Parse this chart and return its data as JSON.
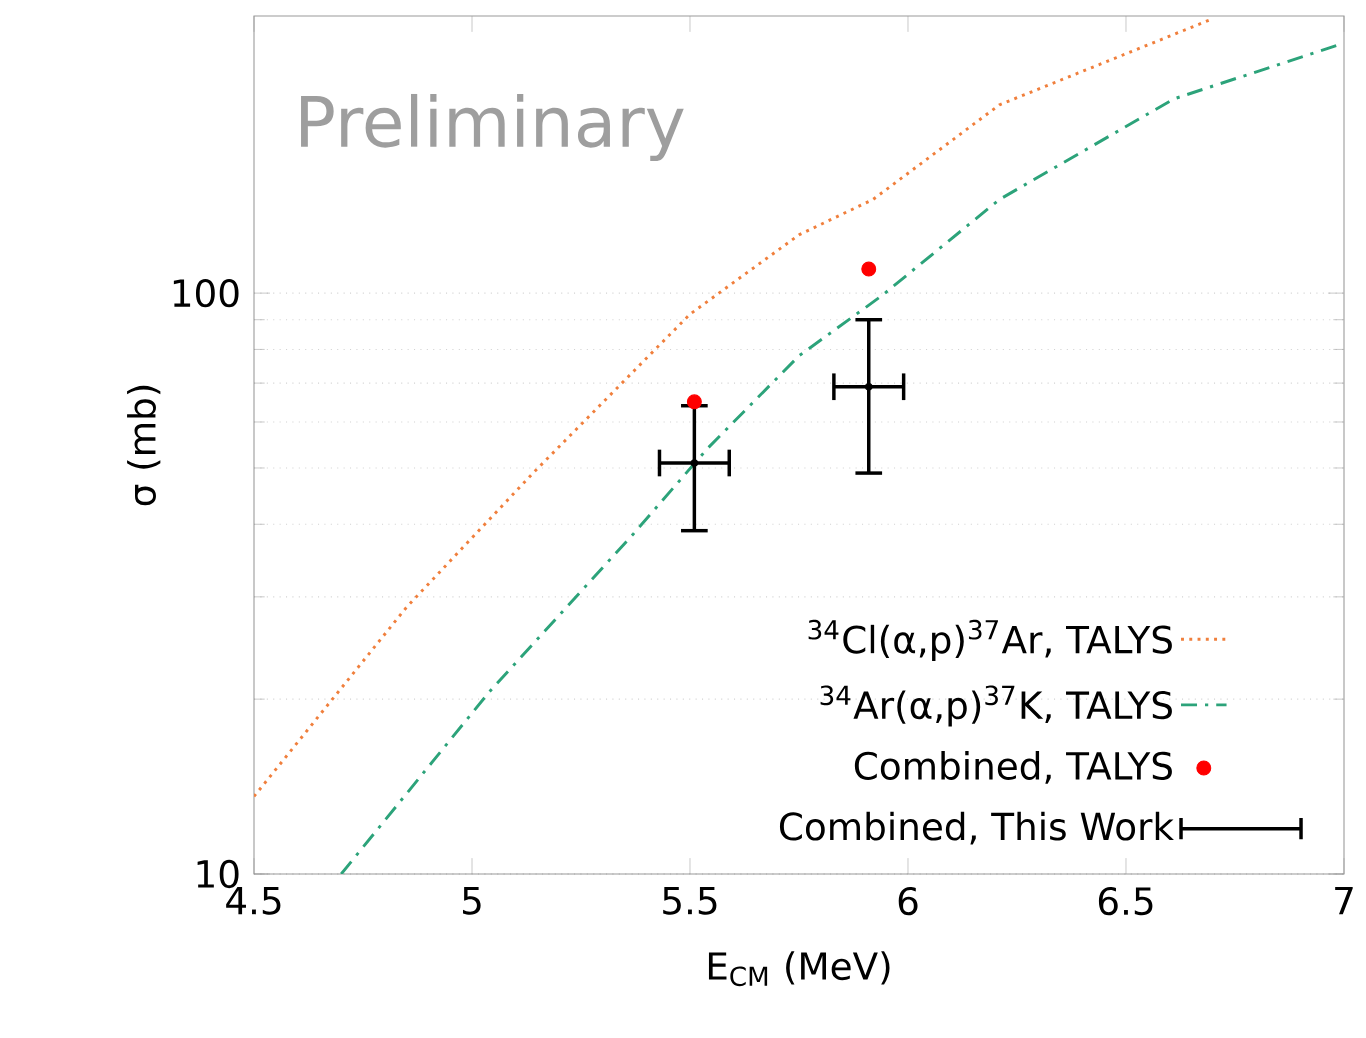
{
  "chart_data": {
    "type": "line",
    "xlabel": "E$_{CM}$ (MeV)",
    "ylabel": "σ (mb)",
    "annotations": [
      "Preliminary"
    ],
    "xlim": [
      4.5,
      7
    ],
    "ylim": [
      10,
      300
    ],
    "xticks": [
      4.5,
      5,
      5.5,
      6,
      6.5,
      7
    ],
    "yticks": [
      10,
      100
    ],
    "log": "y",
    "grid": "y",
    "legend": "bottom right",
    "series": [
      {
        "name": "$^{34}$Cl(α,p)$^{37}$Ar, TALYS",
        "color": "#f07f3c",
        "line_style": "dotted",
        "marker": "none",
        "x": [
          4.5,
          4.85,
          5.14,
          5.5,
          5.75,
          5.92,
          6.21,
          6.7
        ],
        "values": [
          13.6,
          28.8,
          49,
          92,
          126,
          145,
          211,
          297
        ]
      },
      {
        "name": "$^{34}$Ar(α,p)$^{37}$K, TALYS",
        "color": "#2ca37a",
        "line_style": "dashdot",
        "marker": "none",
        "x": [
          4.7,
          5.04,
          5.37,
          5.54,
          5.75,
          5.94,
          6.21,
          6.61,
          6.99
        ],
        "values": [
          10,
          20.6,
          38.5,
          54,
          78,
          99,
          145,
          216,
          268
        ]
      },
      {
        "name": "Combined, TALYS",
        "type": "scatter",
        "color": "#ff0000",
        "marker": "circle",
        "x": [
          5.51,
          5.91
        ],
        "values": [
          65,
          110
        ]
      },
      {
        "name": "Combined, This Work",
        "type": "scatter",
        "color": "#000000",
        "x": [
          5.51,
          5.91
        ],
        "values": [
          51,
          69
        ],
        "errors": [
          [
            39,
            64
          ],
          [
            49,
            90
          ]
        ],
        "xerrors": [
          0.08,
          0.08
        ]
      }
    ]
  }
}
